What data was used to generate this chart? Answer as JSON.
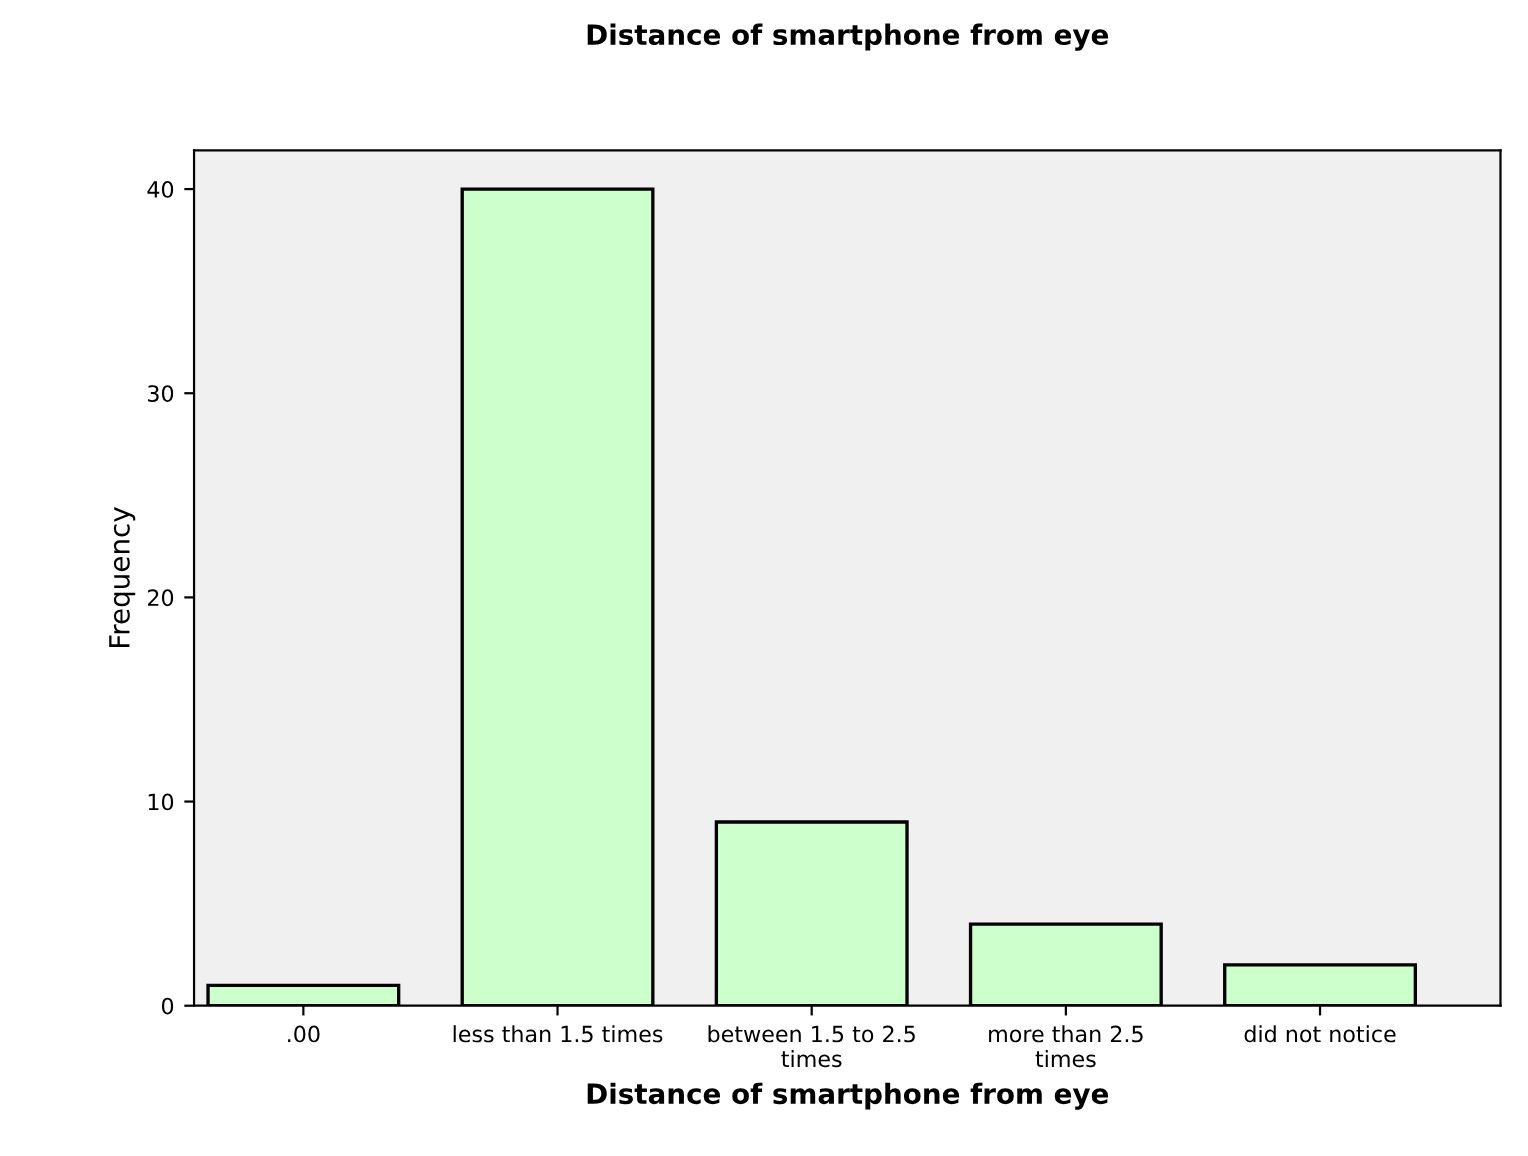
{
  "chart_data": {
    "type": "bar",
    "title": "Distance of smartphone from eye",
    "xlabel": "Distance of smartphone from eye",
    "ylabel": "Frequency",
    "categories": [
      ".00",
      "less than 1.5 times",
      "between 1.5 to 2.5\ntimes",
      "more than 2.5\ntimes",
      "did not notice"
    ],
    "values": [
      1,
      40,
      9,
      4,
      2
    ],
    "color": "#ccffcc",
    "ylim": [
      0,
      41.9
    ],
    "yticks": [
      0,
      10,
      20,
      30,
      40
    ],
    "grid": false
  }
}
